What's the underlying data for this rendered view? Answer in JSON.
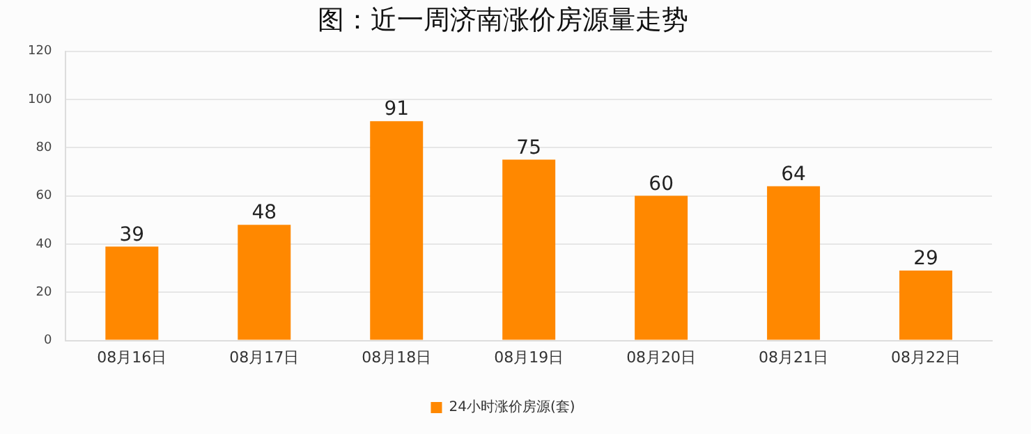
{
  "chart_data": {
    "type": "bar",
    "title": "图：近一周济南涨价房源量走势",
    "categories": [
      "08月16日",
      "08月17日",
      "08月18日",
      "08月19日",
      "08月20日",
      "08月21日",
      "08月22日"
    ],
    "series": [
      {
        "name": "24小时涨价房源(套)",
        "color": "#ff8800",
        "values": [
          39,
          48,
          91,
          75,
          60,
          64,
          29
        ]
      }
    ],
    "ylim": [
      0,
      120
    ],
    "yticks": [
      0,
      20,
      40,
      60,
      80,
      100,
      120
    ],
    "grid": "y",
    "legend": "bottom",
    "data_labels": true
  }
}
